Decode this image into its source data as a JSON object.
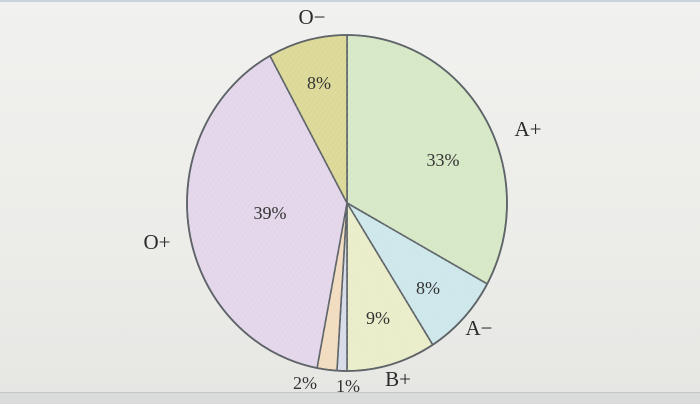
{
  "chart_data": {
    "type": "pie",
    "title": "",
    "slices": [
      {
        "label": "A+",
        "value": 33,
        "value_label": "33%",
        "color": "#d6e8c6"
      },
      {
        "label": "A−",
        "value": 8,
        "value_label": "8%",
        "color": "#cde7ea"
      },
      {
        "label": "B+",
        "value": 9,
        "value_label": "9%",
        "color": "#eaedc9"
      },
      {
        "label": "",
        "value": 1,
        "value_label": "1%",
        "color": "#d8dce8"
      },
      {
        "label": "",
        "value": 2,
        "value_label": "2%",
        "color": "#f1dcc0"
      },
      {
        "label": "O+",
        "value": 39,
        "value_label": "39%",
        "color": "#e4d6ea"
      },
      {
        "label": "O−",
        "value": 8,
        "value_label": "8%",
        "color": "#dcd998"
      }
    ]
  }
}
